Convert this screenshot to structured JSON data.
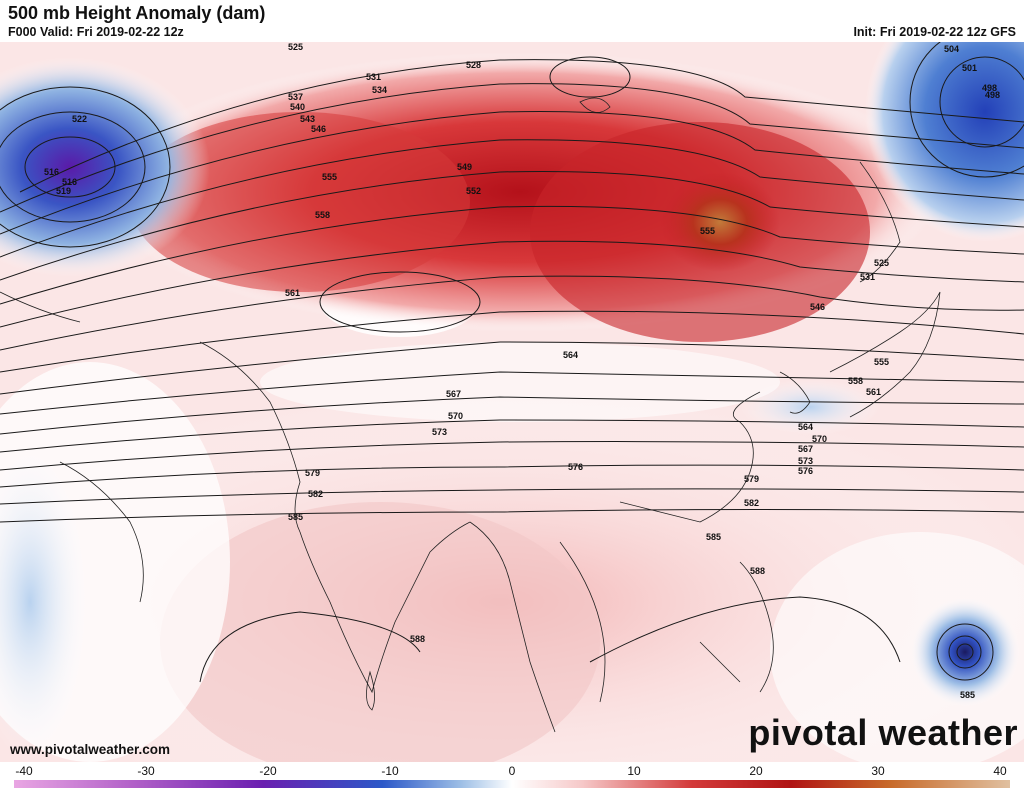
{
  "header": {
    "title": "500 mb Height Anomaly (dam)",
    "valid": "F000 Valid: Fri 2019-02-22 12z",
    "init": "Init: Fri 2019-02-22 12z GFS"
  },
  "footer": {
    "url": "www.pivotalweather.com",
    "brand": "pivotal weather"
  },
  "colorbar": {
    "min": -40,
    "max": 40,
    "ticks": [
      "-40",
      "-30",
      "-20",
      "-10",
      "0",
      "10",
      "20",
      "30",
      "40"
    ],
    "colors": {
      "neg_extreme": "#e9a6e3",
      "neg_deep": "#6a1fb0",
      "neg_mid": "#2c58c8",
      "neg_light": "#9fc0e6",
      "neutral": "#ffffff",
      "pos_light": "#f6c9c9",
      "pos_mid": "#d33b3b",
      "pos_deep": "#b01414",
      "pos_extreme": "#c86a2a"
    }
  },
  "contour_labels": [
    "525",
    "528",
    "531",
    "534",
    "537",
    "540",
    "543",
    "546",
    "549",
    "552",
    "555",
    "558",
    "561",
    "564",
    "567",
    "570",
    "573",
    "576",
    "579",
    "582",
    "585",
    "588",
    "522",
    "516",
    "519",
    "504",
    "501",
    "498",
    "525",
    "531",
    "546",
    "555",
    "558",
    "561",
    "564",
    "567",
    "570",
    "573",
    "576",
    "579",
    "582",
    "585",
    "588"
  ],
  "map_features": {
    "low_west_center": "516",
    "low_east_center": "498",
    "cyclone_label": "585",
    "high_center_label": "555"
  }
}
